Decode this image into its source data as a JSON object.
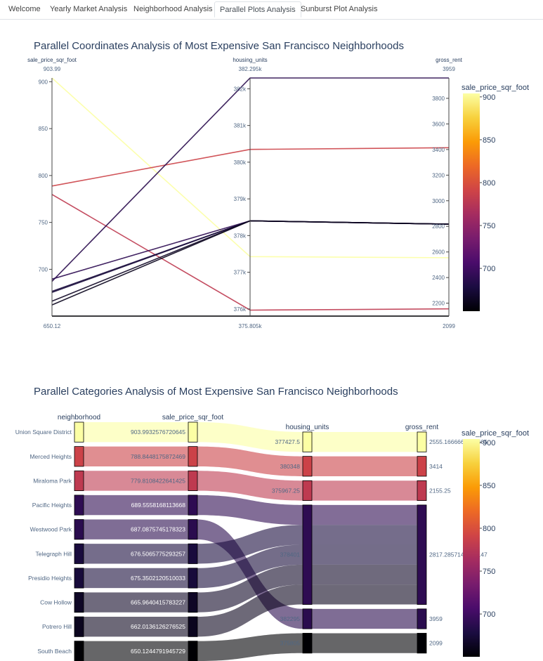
{
  "tabs": [
    {
      "label": "Welcome",
      "active": false
    },
    {
      "label": "Yearly Market Analysis",
      "active": false
    },
    {
      "label": "Neighborhood Analysis",
      "active": false
    },
    {
      "label": "Parallel Plots Analysis",
      "active": true
    },
    {
      "label": "Sunburst Plot Analysis",
      "active": false
    }
  ],
  "chart_data": [
    {
      "type": "parallel_coordinates",
      "title": "Parallel Coordinates Analysis of Most Expensive San Francisco Neighborhoods",
      "dimensions": [
        {
          "label": "sale_price_sqr_foot",
          "range": [
            650.12,
            903.99
          ],
          "min_label": "650.12",
          "max_label": "903.99",
          "ticks": [
            700,
            750,
            800,
            850,
            900
          ],
          "tick_labels": [
            "700",
            "750",
            "800",
            "850",
            "900"
          ]
        },
        {
          "label": "housing_units",
          "range": [
            375805,
            382295
          ],
          "min_label": "375.805k",
          "max_label": "382.295k",
          "ticks": [
            376000,
            377000,
            378000,
            379000,
            380000,
            381000,
            382000
          ],
          "tick_labels": [
            "376k",
            "377k",
            "378k",
            "379k",
            "380k",
            "381k",
            "382k"
          ]
        },
        {
          "label": "gross_rent",
          "range": [
            2099,
            3959
          ],
          "min_label": "2099",
          "max_label": "3959",
          "ticks": [
            2200,
            2400,
            2600,
            2800,
            3000,
            3200,
            3400,
            3600,
            3800
          ],
          "tick_labels": [
            "2200",
            "2400",
            "2600",
            "2800",
            "3000",
            "3200",
            "3400",
            "3600",
            "3800"
          ]
        }
      ],
      "lines": [
        {
          "neighborhood": "Union Square District",
          "values": [
            903.99,
            377427.5,
            2555.17
          ]
        },
        {
          "neighborhood": "Merced Heights",
          "values": [
            788.84,
            380348,
            3414
          ]
        },
        {
          "neighborhood": "Miraloma Park",
          "values": [
            779.81,
            375967.25,
            2155.25
          ]
        },
        {
          "neighborhood": "Pacific Heights",
          "values": [
            689.56,
            378401,
            2817.29
          ]
        },
        {
          "neighborhood": "Westwood Park",
          "values": [
            687.09,
            382295,
            3959
          ]
        },
        {
          "neighborhood": "Telegraph Hill",
          "values": [
            676.51,
            378401,
            2817.29
          ]
        },
        {
          "neighborhood": "Presidio Heights",
          "values": [
            675.35,
            378401,
            2817.29
          ]
        },
        {
          "neighborhood": "Cow Hollow",
          "values": [
            665.96,
            378401,
            2817.29
          ]
        },
        {
          "neighborhood": "Potrero Hill",
          "values": [
            662.01,
            378401,
            2817.29
          ]
        },
        {
          "neighborhood": "South Beach",
          "values": [
            650.12,
            375805,
            2099
          ]
        }
      ],
      "colorbar": {
        "title": "sale_price_sqr_foot",
        "ticks": [
          700,
          750,
          800,
          850,
          900
        ],
        "tick_labels": [
          "700",
          "750",
          "800",
          "850",
          "900"
        ]
      }
    },
    {
      "type": "parallel_categories",
      "title": "Parallel Categories Analysis of Most Expensive San Francisco Neighborhoods",
      "dimensions": [
        {
          "label": "neighborhood",
          "categories": [
            "Union Square District",
            "Merced Heights",
            "Miraloma Park",
            "Pacific Heights",
            "Westwood Park",
            "Telegraph Hill",
            "Presidio Heights",
            "Cow Hollow",
            "Potrero Hill",
            "South Beach"
          ]
        },
        {
          "label": "sale_price_sqr_foot",
          "categories": [
            "903.9932576720645",
            "788.8448175872469",
            "779.8108422641425",
            "689.5558168113668",
            "687.0875745178323",
            "676.5065775293257",
            "675.3502120510033",
            "665.9640415783227",
            "662.0136126276525",
            "650.1244791945729"
          ]
        },
        {
          "label": "housing_units",
          "categories": [
            "377427.5",
            "380348",
            "375967.25",
            "378401",
            "382295",
            "375805"
          ]
        },
        {
          "label": "gross_rent",
          "categories": [
            "2555.1666666666665",
            "3414",
            "2155.25",
            "2817.2857142857147",
            "3959",
            "2099"
          ]
        }
      ],
      "colorbar": {
        "title": "sale_price_sqr_foot",
        "ticks": [
          700,
          750,
          800,
          850,
          900
        ],
        "tick_labels": [
          "700",
          "750",
          "800",
          "850",
          "900"
        ]
      }
    }
  ]
}
